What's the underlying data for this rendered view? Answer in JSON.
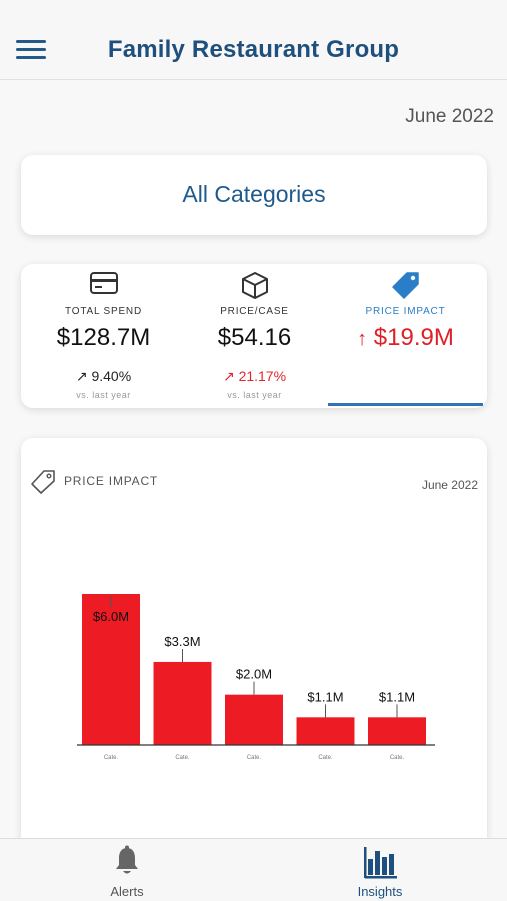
{
  "header": {
    "title": "Family Restaurant Group"
  },
  "period": "June 2022",
  "category": "All Categories",
  "metrics": [
    {
      "label": "TOTAL SPEND",
      "value": "$128.7M",
      "change": "9.40%",
      "sub": "vs. last year",
      "icon": "credit-card-icon"
    },
    {
      "label": "PRICE/CASE",
      "value": "$54.16",
      "change": "21.17%",
      "sub": "vs. last year",
      "icon": "box-icon"
    },
    {
      "label": "PRICE IMPACT",
      "value": "$19.9M",
      "icon": "price-tag-icon",
      "selected": true
    }
  ],
  "chart": {
    "title": "PRICE IMPACT",
    "date": "June 2022"
  },
  "chart_data": {
    "type": "bar",
    "categories": [
      "Cate.",
      "Cate.",
      "Cate.",
      "Cate.",
      "Cate."
    ],
    "values": [
      6.0,
      3.3,
      2.0,
      1.1,
      1.1
    ],
    "data_labels": [
      "$6.0M",
      "$3.3M",
      "$2.0M",
      "$1.1M",
      "$1.1M"
    ],
    "ylim": [
      0,
      6.0
    ],
    "color": "#ed1c24",
    "grid": false
  },
  "tabs": [
    {
      "label": "Alerts",
      "icon": "bell-icon"
    },
    {
      "label": "Insights",
      "icon": "bar-chart-icon",
      "selected": true
    }
  ],
  "colors": {
    "brand": "#1f4f7c",
    "accent": "#2f73b5",
    "negative": "#e0262d"
  }
}
